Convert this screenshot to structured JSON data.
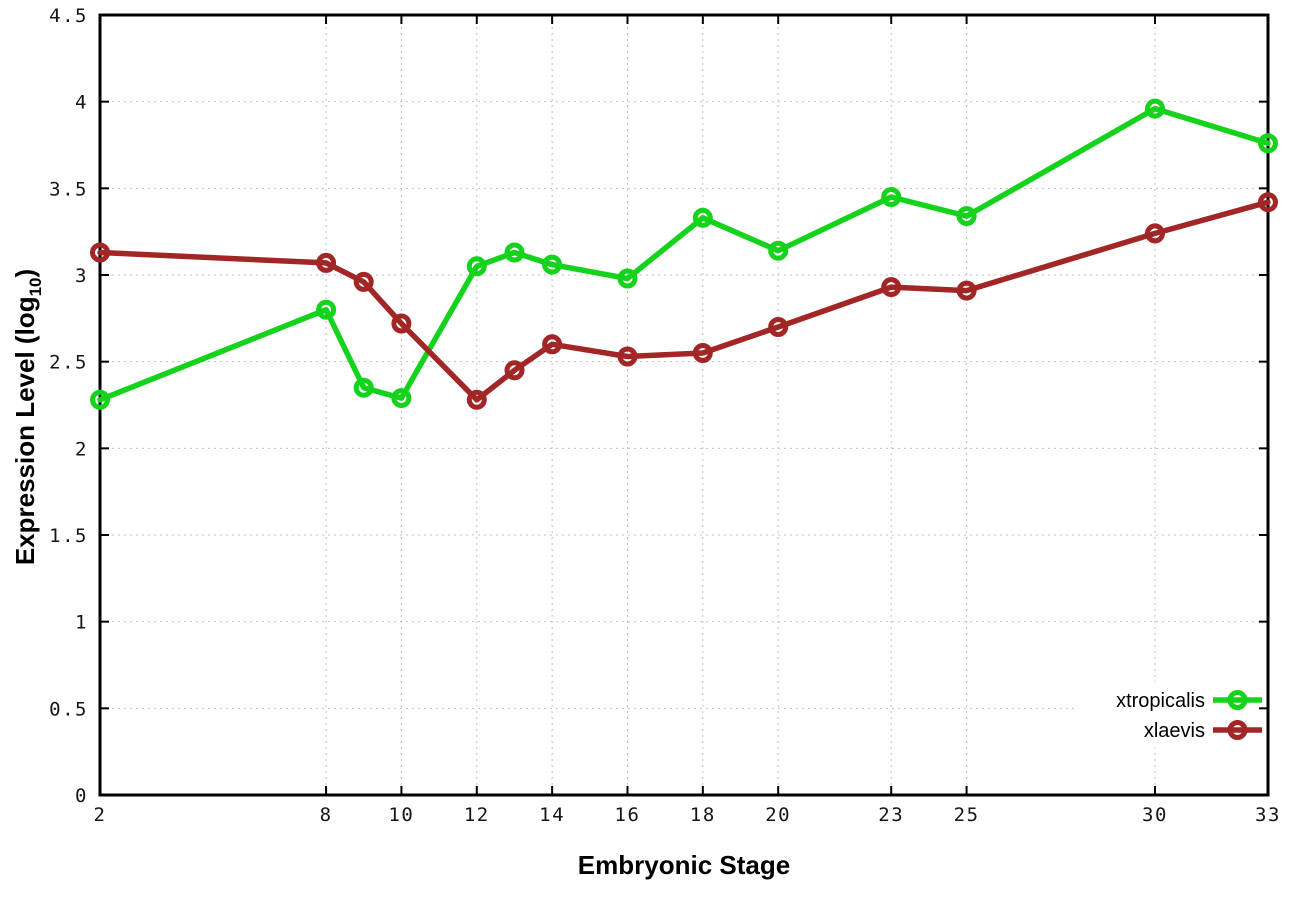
{
  "figure": {
    "background": "#ffffff",
    "ylabel_parts": {
      "prefix": "Expression Level (log",
      "sub": "10",
      "suffix": ")"
    }
  },
  "chart_data": {
    "type": "line",
    "title": "",
    "xlabel": "Embryonic Stage",
    "ylabel": "Expression Level (log10)",
    "xlim": [
      2,
      33
    ],
    "ylim": [
      0,
      4.5
    ],
    "x_ticks": [
      2,
      8,
      10,
      12,
      14,
      16,
      18,
      20,
      23,
      25,
      30,
      33
    ],
    "y_ticks": [
      0,
      0.5,
      1,
      1.5,
      2,
      2.5,
      3,
      3.5,
      4,
      4.5
    ],
    "grid": true,
    "legend_position": "bottom-right",
    "stages": [
      2,
      8,
      9,
      10,
      12,
      13,
      14,
      16,
      18,
      20,
      23,
      25,
      30,
      33
    ],
    "series": [
      {
        "name": "xtropicalis",
        "color": "#15d31c",
        "marker": "open-circle",
        "x": [
          2,
          8,
          9,
          10,
          12,
          13,
          14,
          16,
          18,
          20,
          23,
          25,
          30,
          33
        ],
        "y": [
          2.28,
          2.8,
          2.35,
          2.29,
          3.05,
          3.13,
          3.06,
          2.98,
          3.33,
          3.14,
          3.45,
          3.34,
          3.96,
          3.76
        ]
      },
      {
        "name": "xlaevis",
        "color": "#a22626",
        "marker": "open-circle",
        "x": [
          2,
          8,
          9,
          10,
          12,
          13,
          14,
          16,
          18,
          20,
          23,
          25,
          30,
          33
        ],
        "y": [
          3.13,
          3.07,
          2.96,
          2.72,
          2.28,
          2.45,
          2.6,
          2.53,
          2.55,
          2.7,
          2.93,
          2.91,
          3.24,
          3.42
        ]
      }
    ],
    "style": {
      "border_color": "#000000",
      "grid_color": "#c0c0c0",
      "tick_label_color": "#151515",
      "legend_text_color": "#000000"
    }
  }
}
